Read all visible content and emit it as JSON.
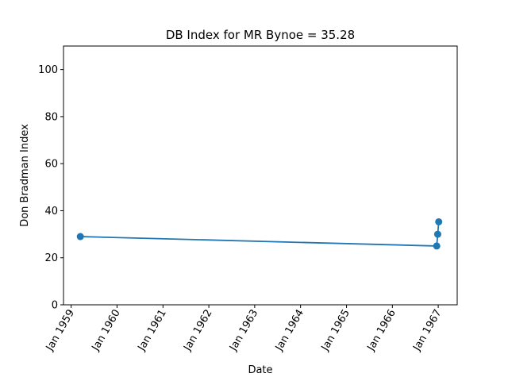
{
  "chart_data": {
    "type": "line",
    "title": "DB Index for MR Bynoe = 35.28",
    "xlabel": "Date",
    "ylabel": "Don Bradman Index",
    "ylim": [
      0,
      110
    ],
    "xlim": [
      "1958-11-01",
      "1967-06-01"
    ],
    "yticks": [
      0,
      20,
      40,
      60,
      80,
      100
    ],
    "xticks": [
      {
        "date": "1959-01-01",
        "label": "Jan 1959"
      },
      {
        "date": "1960-01-01",
        "label": "Jan 1960"
      },
      {
        "date": "1961-01-01",
        "label": "Jan 1961"
      },
      {
        "date": "1962-01-01",
        "label": "Jan 1962"
      },
      {
        "date": "1963-01-01",
        "label": "Jan 1963"
      },
      {
        "date": "1964-01-01",
        "label": "Jan 1964"
      },
      {
        "date": "1965-01-01",
        "label": "Jan 1965"
      },
      {
        "date": "1966-01-01",
        "label": "Jan 1966"
      },
      {
        "date": "1967-01-01",
        "label": "Jan 1967"
      }
    ],
    "grid": false,
    "series": [
      {
        "color": "#1f77b4",
        "marker": "circle",
        "points": [
          {
            "x": "1959-03-15",
            "y": 29.0
          },
          {
            "x": "1966-12-20",
            "y": 25.0
          },
          {
            "x": "1966-12-28",
            "y": 30.0
          },
          {
            "x": "1967-01-05",
            "y": 35.28
          }
        ]
      }
    ]
  }
}
